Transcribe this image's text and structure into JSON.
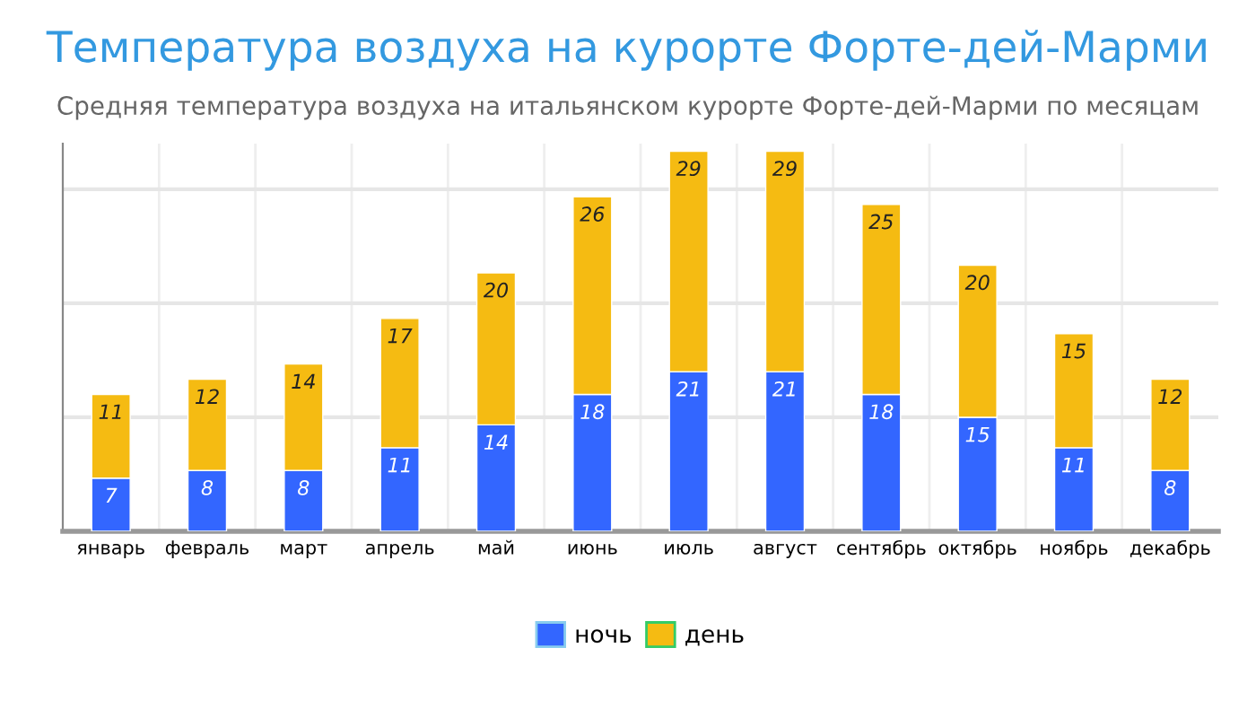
{
  "chart_data": {
    "type": "bar",
    "title": "Температура воздуха на курорте Форте-дей-Марми",
    "subtitle": "Средняя температура воздуха на итальянском курорте Форте-дей-Марми по месяцам",
    "categories": [
      "январь",
      "февраль",
      "март",
      "апрель",
      "май",
      "июнь",
      "июль",
      "август",
      "сентябрь",
      "октябрь",
      "ноябрь",
      "декабрь"
    ],
    "series": [
      {
        "name": "ночь",
        "color": "#3366ff",
        "values": [
          7,
          8,
          8,
          11,
          14,
          18,
          21,
          21,
          18,
          15,
          11,
          8
        ]
      },
      {
        "name": "день",
        "color": "#f5bb12",
        "values": [
          11,
          12,
          14,
          17,
          20,
          26,
          29,
          29,
          25,
          20,
          15,
          12
        ]
      }
    ],
    "stacked": true,
    "data_labels": true,
    "ylim": [
      0,
      51
    ],
    "yticks": [
      {
        "value": 15,
        "label": null
      },
      {
        "value": 30,
        "label": null
      },
      {
        "value": 45,
        "label": null
      }
    ],
    "grid": true,
    "legend": "bottom"
  }
}
